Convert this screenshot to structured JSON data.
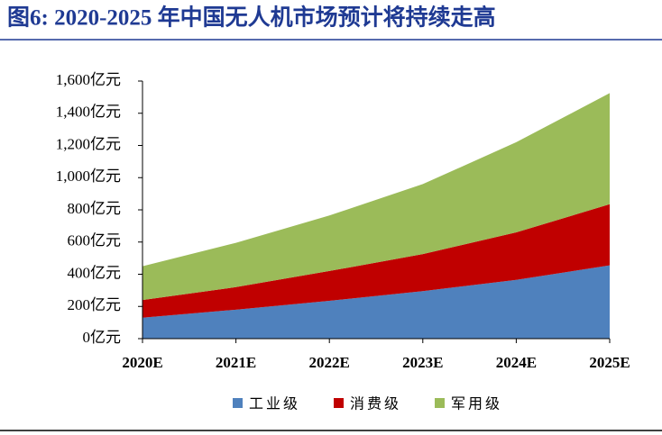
{
  "chart_data": {
    "type": "stacked-area",
    "title": "图6:  2020-2025 年中国无人机市场预计将持续走高",
    "categories": [
      "2020E",
      "2021E",
      "2022E",
      "2023E",
      "2024E",
      "2025E"
    ],
    "series": [
      {
        "name": "工业级",
        "color": "#4f81bd",
        "values": [
          130,
          180,
          235,
          295,
          365,
          455
        ]
      },
      {
        "name": "消费级",
        "color": "#c00000",
        "values": [
          110,
          140,
          185,
          230,
          295,
          380
        ]
      },
      {
        "name": "军用级",
        "color": "#9bbb59",
        "values": [
          210,
          275,
          345,
          435,
          560,
          690
        ]
      }
    ],
    "ylim": [
      0,
      1600
    ],
    "yticks": [
      {
        "value": 0,
        "label": "0亿元"
      },
      {
        "value": 200,
        "label": "200亿元"
      },
      {
        "value": 400,
        "label": "400亿元"
      },
      {
        "value": 600,
        "label": "600亿元"
      },
      {
        "value": 800,
        "label": "800亿元"
      },
      {
        "value": 1000,
        "label": "1,000亿元"
      },
      {
        "value": 1200,
        "label": "1,200亿元"
      },
      {
        "value": 1400,
        "label": "1,400亿元"
      },
      {
        "value": 1600,
        "label": "1,600亿元"
      }
    ],
    "legend": "bottom"
  }
}
